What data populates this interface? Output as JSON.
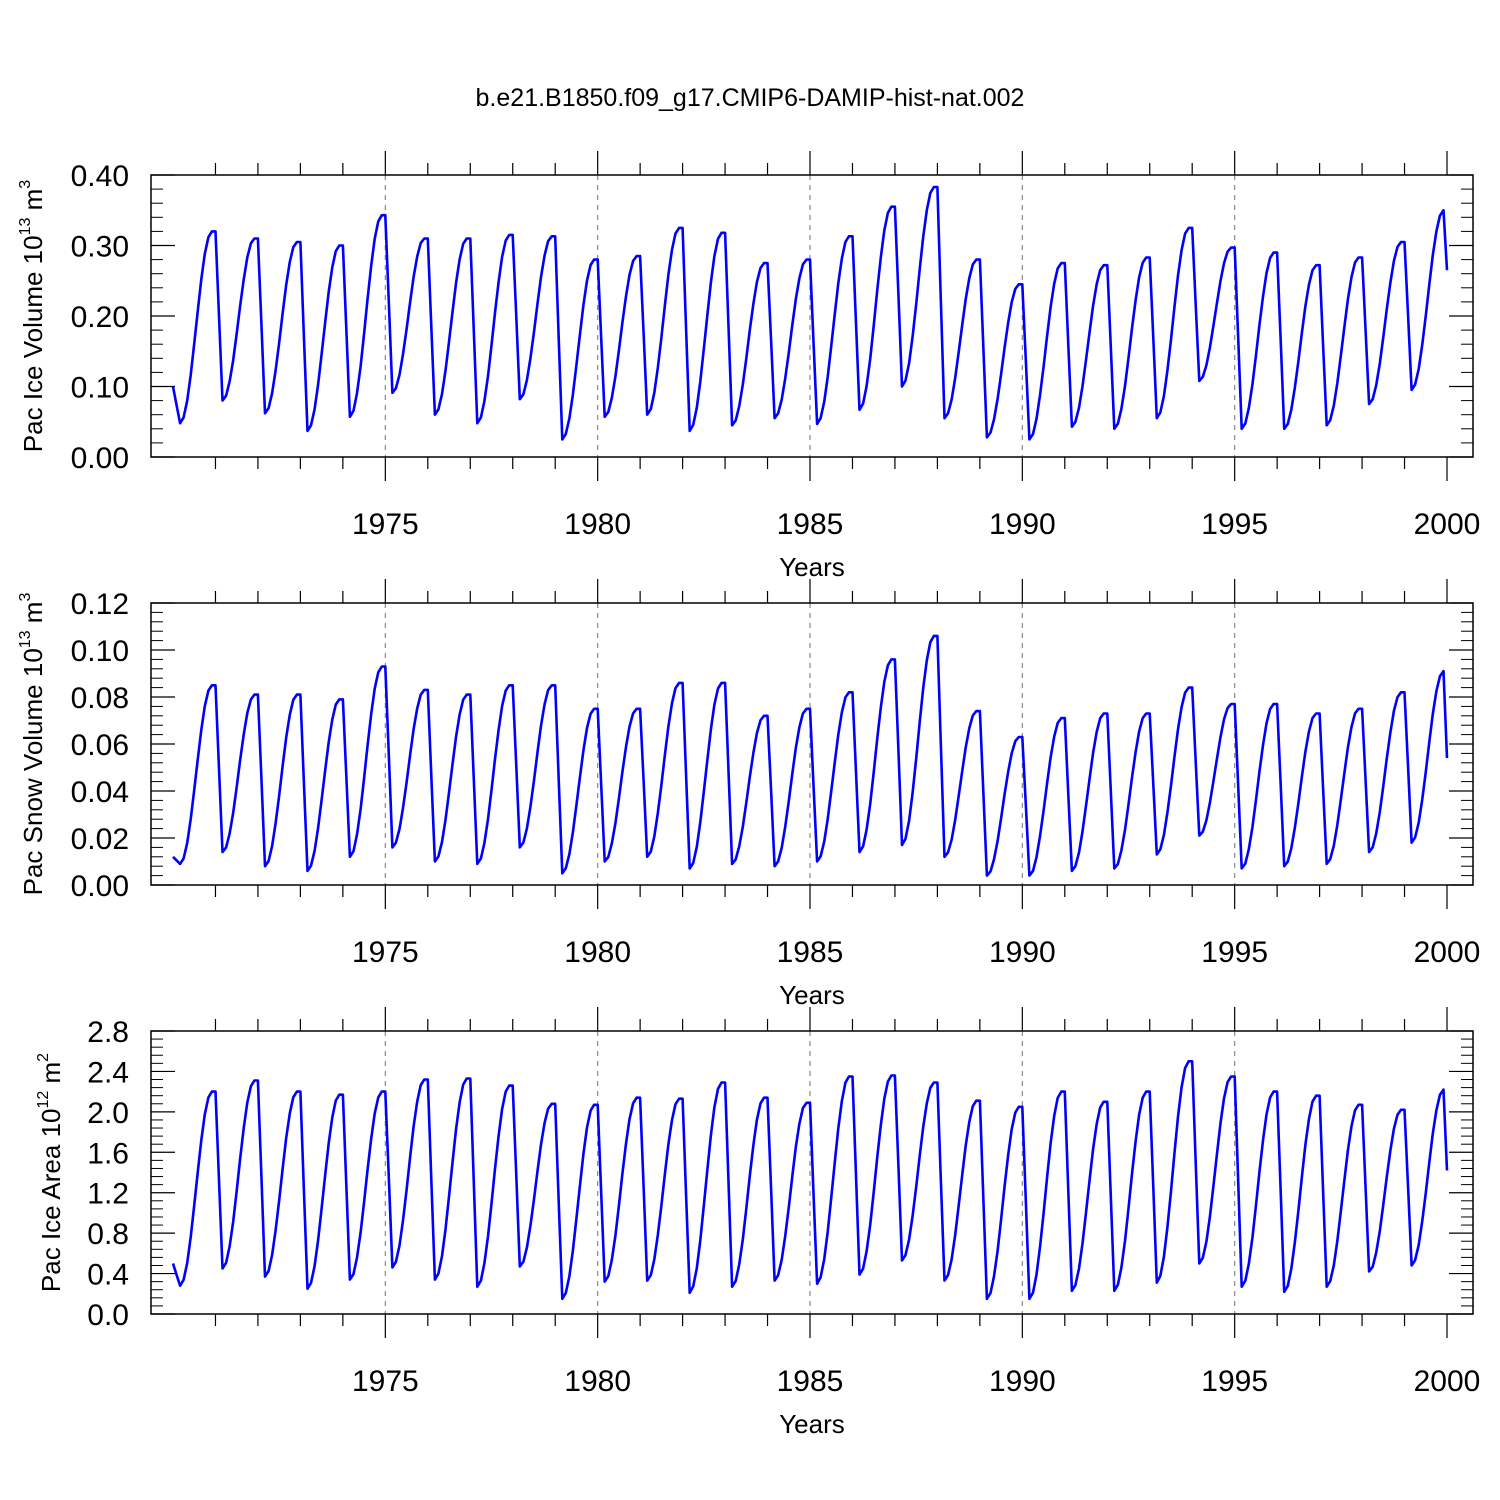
{
  "title": "b.e21.B1850.f09_g17.CMIP6-DAMIP-hist-nat.002",
  "line_color": "#0000ff",
  "chart_data": [
    {
      "type": "line",
      "ylabel": "Pac Ice Volume 10",
      "ylabel_exp": "13",
      "ylabel_unit": "m",
      "ylabel_unit_exp": "3",
      "xlabel": "Years",
      "xlim": [
        1970.0,
        2000.0
      ],
      "ylim": [
        0.0,
        0.4
      ],
      "yticks": [
        "0.00",
        "0.10",
        "0.20",
        "0.30",
        "0.40"
      ],
      "xticks": [
        "1975",
        "1980",
        "1985",
        "1990",
        "1995",
        "2000"
      ],
      "series": [
        {
          "peaks": [
            0.32,
            0.31,
            0.305,
            0.3,
            0.343,
            0.31,
            0.31,
            0.315,
            0.313,
            0.28,
            0.285,
            0.325,
            0.318,
            0.275,
            0.28,
            0.313,
            0.355,
            0.383,
            0.28,
            0.245,
            0.275,
            0.272,
            0.283,
            0.325,
            0.297,
            0.29,
            0.272,
            0.283,
            0.305,
            0.35
          ],
          "troughs": [
            0.048,
            0.08,
            0.062,
            0.037,
            0.057,
            0.091,
            0.06,
            0.048,
            0.082,
            0.025,
            0.057,
            0.06,
            0.037,
            0.045,
            0.055,
            0.047,
            0.067,
            0.1,
            0.055,
            0.028,
            0.025,
            0.043,
            0.04,
            0.055,
            0.108,
            0.04,
            0.04,
            0.045,
            0.075,
            0.095
          ],
          "start": 0.1,
          "end": 0.265
        }
      ]
    },
    {
      "type": "line",
      "ylabel": "Pac Snow Volume 10",
      "ylabel_exp": "13",
      "ylabel_unit": "m",
      "ylabel_unit_exp": "3",
      "xlabel": "Years",
      "xlim": [
        1970.0,
        2000.0
      ],
      "ylim": [
        0.0,
        0.12
      ],
      "yticks": [
        "0.00",
        "0.02",
        "0.04",
        "0.06",
        "0.08",
        "0.10",
        "0.12"
      ],
      "xticks": [
        "1975",
        "1980",
        "1985",
        "1990",
        "1995",
        "2000"
      ],
      "series": [
        {
          "peaks": [
            0.085,
            0.081,
            0.081,
            0.079,
            0.093,
            0.083,
            0.081,
            0.085,
            0.085,
            0.075,
            0.075,
            0.086,
            0.086,
            0.072,
            0.075,
            0.082,
            0.096,
            0.106,
            0.074,
            0.063,
            0.071,
            0.073,
            0.073,
            0.084,
            0.077,
            0.077,
            0.073,
            0.075,
            0.082,
            0.091
          ],
          "troughs": [
            0.009,
            0.014,
            0.008,
            0.006,
            0.012,
            0.016,
            0.01,
            0.009,
            0.016,
            0.005,
            0.01,
            0.012,
            0.007,
            0.009,
            0.008,
            0.01,
            0.014,
            0.017,
            0.012,
            0.004,
            0.004,
            0.006,
            0.007,
            0.013,
            0.021,
            0.007,
            0.008,
            0.009,
            0.014,
            0.018
          ],
          "start": 0.012,
          "end": 0.054
        }
      ]
    },
    {
      "type": "line",
      "ylabel": "Pac Ice Area 10",
      "ylabel_exp": "12",
      "ylabel_unit": "m",
      "ylabel_unit_exp": "2",
      "xlabel": "Years",
      "xlim": [
        1970.0,
        2000.0
      ],
      "ylim": [
        0.0,
        2.8
      ],
      "yticks": [
        "0.0",
        "0.4",
        "0.8",
        "1.2",
        "1.6",
        "2.0",
        "2.4",
        "2.8"
      ],
      "xticks": [
        "1975",
        "1980",
        "1985",
        "1990",
        "1995",
        "2000"
      ],
      "series": [
        {
          "peaks": [
            2.2,
            2.31,
            2.2,
            2.17,
            2.2,
            2.32,
            2.33,
            2.26,
            2.08,
            2.07,
            2.14,
            2.13,
            2.29,
            2.14,
            2.09,
            2.35,
            2.36,
            2.29,
            2.11,
            2.05,
            2.2,
            2.1,
            2.2,
            2.5,
            2.35,
            2.2,
            2.16,
            2.07,
            2.02,
            2.22
          ],
          "troughs": [
            0.28,
            0.45,
            0.37,
            0.25,
            0.34,
            0.46,
            0.34,
            0.27,
            0.47,
            0.15,
            0.32,
            0.33,
            0.21,
            0.27,
            0.33,
            0.3,
            0.39,
            0.53,
            0.33,
            0.15,
            0.15,
            0.23,
            0.23,
            0.31,
            0.5,
            0.27,
            0.22,
            0.27,
            0.42,
            0.48
          ],
          "start": 0.5,
          "end": 1.42
        }
      ]
    }
  ]
}
